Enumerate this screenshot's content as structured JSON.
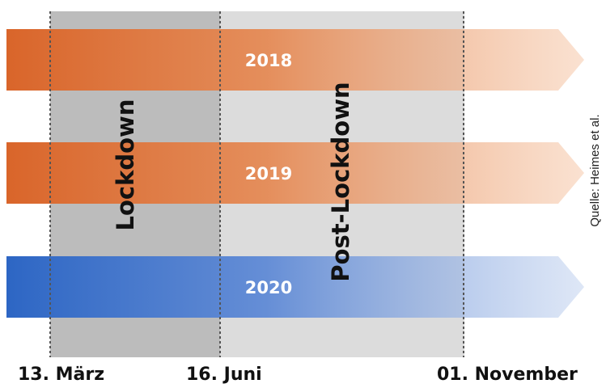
{
  "phases": [
    {
      "label": "Lockdown",
      "color": "#bcbcbc"
    },
    {
      "label": "Post-Lockdown",
      "color": "#dcdcdc"
    }
  ],
  "years": [
    {
      "label": "2018",
      "color": "#d9652a"
    },
    {
      "label": "2019",
      "color": "#d9652a"
    },
    {
      "label": "2020",
      "color": "#2d66c4"
    }
  ],
  "dates": [
    {
      "label": "13. März"
    },
    {
      "label": "16. Juni"
    },
    {
      "label": "01. November"
    }
  ],
  "source": "Quelle: Heimes et al."
}
